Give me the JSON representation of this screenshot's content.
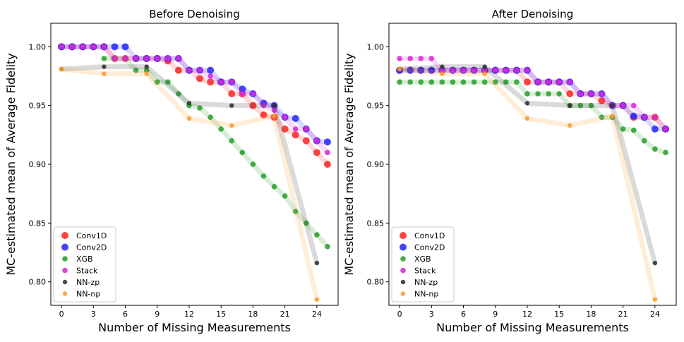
{
  "chart_data": [
    {
      "type": "scatter",
      "title": "Before Denoising",
      "xlabel": "Number of Missing Measurements",
      "ylabel": "MC-estimated mean of Average Fidelity",
      "xlim": [
        -1,
        26
      ],
      "ylim": [
        0.78,
        1.02
      ],
      "xticks": [
        0,
        3,
        6,
        9,
        12,
        15,
        18,
        21,
        24
      ],
      "yticks": [
        0.8,
        0.85,
        0.9,
        0.95,
        1.0
      ],
      "ytick_labels": [
        "0.80",
        "0.85",
        "0.90",
        "0.95",
        "1.00"
      ],
      "legend": "bottom-left",
      "series": [
        {
          "name": "Conv1D",
          "color": "#ff2a2a",
          "x": [
            0,
            1,
            2,
            3,
            4,
            5,
            6,
            7,
            8,
            9,
            10,
            11,
            12,
            13,
            14,
            15,
            16,
            17,
            18,
            19,
            20,
            21,
            22,
            23,
            24,
            25
          ],
          "y": [
            1.0,
            1.0,
            1.0,
            1.0,
            1.0,
            0.99,
            0.99,
            0.99,
            0.99,
            0.99,
            0.988,
            0.98,
            0.98,
            0.973,
            0.97,
            0.97,
            0.96,
            0.96,
            0.95,
            0.942,
            0.94,
            0.93,
            0.925,
            0.92,
            0.91,
            0.9
          ]
        },
        {
          "name": "Conv2D",
          "color": "#2a2aff",
          "x": [
            0,
            1,
            2,
            3,
            4,
            5,
            6,
            7,
            8,
            9,
            10,
            11,
            12,
            13,
            14,
            15,
            16,
            17,
            18,
            19,
            20,
            21,
            22,
            23,
            24,
            25
          ],
          "y": [
            1.0,
            1.0,
            1.0,
            1.0,
            1.0,
            1.0,
            1.0,
            0.99,
            0.99,
            0.99,
            0.99,
            0.99,
            0.98,
            0.98,
            0.98,
            0.97,
            0.97,
            0.964,
            0.96,
            0.952,
            0.95,
            0.94,
            0.939,
            0.93,
            0.92,
            0.919
          ]
        },
        {
          "name": "XGB",
          "color": "#2ca02c",
          "x": [
            4,
            5,
            6,
            7,
            8,
            9,
            10,
            11,
            12,
            13,
            14,
            15,
            16,
            17,
            18,
            19,
            20,
            21,
            22,
            23,
            24,
            25
          ],
          "y": [
            0.99,
            0.99,
            0.99,
            0.98,
            0.98,
            0.97,
            0.97,
            0.96,
            0.95,
            0.948,
            0.94,
            0.93,
            0.92,
            0.91,
            0.9,
            0.89,
            0.881,
            0.873,
            0.86,
            0.85,
            0.84,
            0.83
          ]
        },
        {
          "name": "Stack",
          "color": "#d62ad6",
          "x": [
            0,
            1,
            2,
            3,
            4,
            5,
            6,
            7,
            8,
            9,
            10,
            11,
            12,
            13,
            14,
            15,
            16,
            17,
            18,
            19,
            20,
            21,
            22,
            23,
            24,
            25
          ],
          "y": [
            1.0,
            1.0,
            1.0,
            1.0,
            1.0,
            0.99,
            0.99,
            0.99,
            0.99,
            0.99,
            0.99,
            0.99,
            0.98,
            0.98,
            0.975,
            0.97,
            0.97,
            0.96,
            0.96,
            0.95,
            0.946,
            0.94,
            0.93,
            0.93,
            0.92,
            0.91
          ]
        },
        {
          "name": "NN-zp",
          "color": "#303030",
          "x": [
            0,
            4,
            8,
            12,
            16,
            20,
            24
          ],
          "y": [
            0.981,
            0.983,
            0.983,
            0.952,
            0.95,
            0.95,
            0.816
          ]
        },
        {
          "name": "NN-np",
          "color": "#ff9a2a",
          "x": [
            0,
            4,
            8,
            12,
            16,
            20,
            24
          ],
          "y": [
            0.981,
            0.977,
            0.977,
            0.939,
            0.933,
            0.941,
            0.785
          ]
        }
      ]
    },
    {
      "type": "scatter",
      "title": "After Denoising",
      "xlabel": "Number of Missing Measurements",
      "ylabel": "MC-estimated mean of Average Fidelity",
      "xlim": [
        -1,
        26
      ],
      "ylim": [
        0.78,
        1.02
      ],
      "xticks": [
        0,
        3,
        6,
        9,
        12,
        15,
        18,
        21,
        24
      ],
      "yticks": [
        0.8,
        0.85,
        0.9,
        0.95,
        1.0
      ],
      "ytick_labels": [
        "0.80",
        "0.85",
        "0.90",
        "0.95",
        "1.00"
      ],
      "legend": "bottom-left",
      "series": [
        {
          "name": "Conv1D",
          "color": "#ff2a2a",
          "x": [
            0,
            1,
            2,
            3,
            4,
            5,
            6,
            7,
            8,
            9,
            10,
            11,
            12,
            13,
            14,
            15,
            16,
            17,
            18,
            19,
            20,
            21,
            22,
            23,
            24,
            25
          ],
          "y": [
            0.98,
            0.98,
            0.98,
            0.98,
            0.98,
            0.98,
            0.98,
            0.98,
            0.98,
            0.98,
            0.98,
            0.98,
            0.97,
            0.97,
            0.97,
            0.97,
            0.96,
            0.96,
            0.96,
            0.954,
            0.95,
            0.95,
            0.94,
            0.94,
            0.94,
            0.93
          ]
        },
        {
          "name": "Conv2D",
          "color": "#2a2aff",
          "x": [
            0,
            1,
            2,
            3,
            4,
            5,
            6,
            7,
            8,
            9,
            10,
            11,
            12,
            13,
            14,
            15,
            16,
            17,
            18,
            19,
            20,
            21,
            22,
            23,
            24,
            25
          ],
          "y": [
            0.98,
            0.98,
            0.98,
            0.98,
            0.98,
            0.98,
            0.98,
            0.98,
            0.98,
            0.98,
            0.98,
            0.98,
            0.98,
            0.97,
            0.97,
            0.97,
            0.97,
            0.96,
            0.96,
            0.96,
            0.95,
            0.95,
            0.941,
            0.94,
            0.93,
            0.93
          ]
        },
        {
          "name": "XGB",
          "color": "#2ca02c",
          "x": [
            0,
            1,
            2,
            3,
            4,
            5,
            6,
            7,
            8,
            9,
            10,
            11,
            12,
            13,
            14,
            15,
            16,
            17,
            18,
            19,
            20,
            21,
            22,
            23,
            24,
            25
          ],
          "y": [
            0.97,
            0.97,
            0.97,
            0.97,
            0.97,
            0.97,
            0.97,
            0.97,
            0.97,
            0.97,
            0.97,
            0.97,
            0.96,
            0.96,
            0.96,
            0.96,
            0.95,
            0.95,
            0.95,
            0.94,
            0.94,
            0.93,
            0.929,
            0.92,
            0.913,
            0.91
          ]
        },
        {
          "name": "Stack",
          "color": "#d62ad6",
          "x": [
            0,
            1,
            2,
            3,
            4,
            5,
            6,
            7,
            8,
            9,
            10,
            11,
            12,
            13,
            14,
            15,
            16,
            17,
            18,
            19,
            20,
            21,
            22,
            23,
            24,
            25
          ],
          "y": [
            0.99,
            0.99,
            0.99,
            0.99,
            0.98,
            0.98,
            0.98,
            0.98,
            0.98,
            0.98,
            0.98,
            0.98,
            0.98,
            0.97,
            0.97,
            0.97,
            0.97,
            0.96,
            0.96,
            0.96,
            0.95,
            0.95,
            0.95,
            0.94,
            0.94,
            0.93
          ]
        },
        {
          "name": "NN-zp",
          "color": "#303030",
          "x": [
            0,
            4,
            8,
            12,
            16,
            20,
            24
          ],
          "y": [
            0.981,
            0.983,
            0.983,
            0.952,
            0.95,
            0.95,
            0.816
          ]
        },
        {
          "name": "NN-np",
          "color": "#ff9a2a",
          "x": [
            0,
            4,
            8,
            12,
            16,
            20,
            24
          ],
          "y": [
            0.981,
            0.977,
            0.977,
            0.939,
            0.933,
            0.941,
            0.785
          ]
        }
      ]
    }
  ]
}
